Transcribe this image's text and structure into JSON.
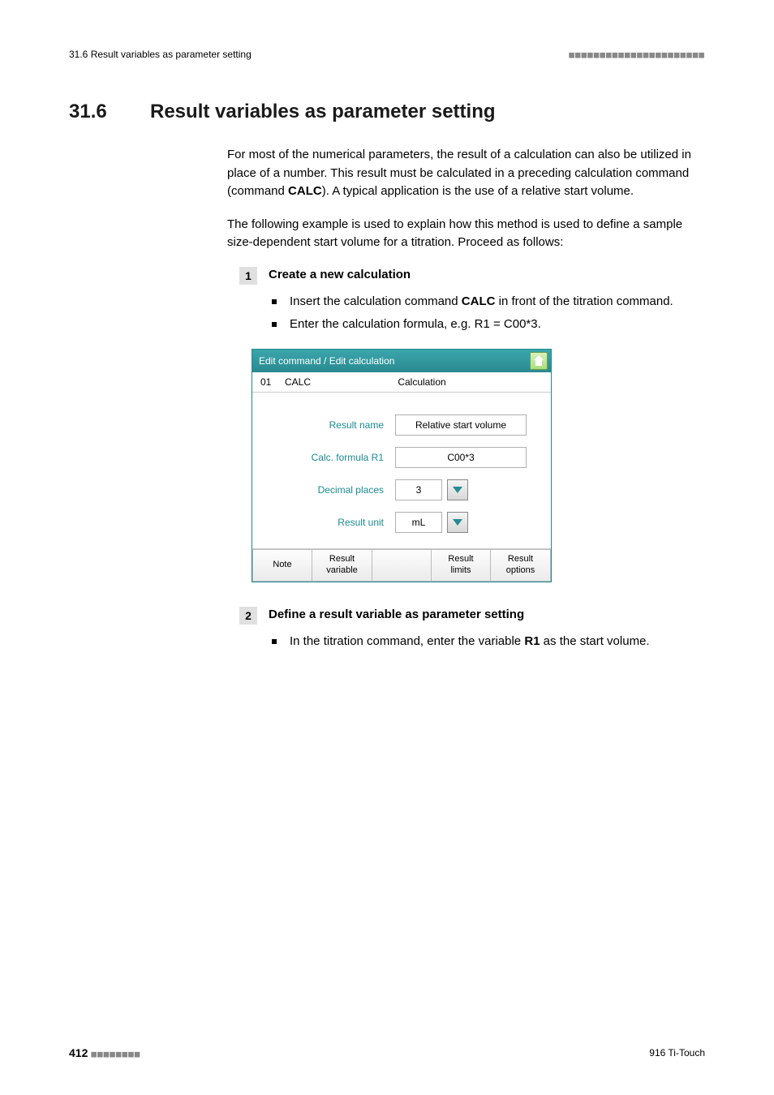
{
  "header": {
    "left": "31.6 Result variables as parameter setting",
    "dashes": "■■■■■■■■■■■■■■■■■■■■■■"
  },
  "section": {
    "number": "31.6",
    "title": "Result variables as parameter setting"
  },
  "intro": {
    "p1_a": "For most of the numerical parameters, the result of a calculation can also be utilized in place of a number. This result must be calculated in a preceding calculation command (command ",
    "p1_b": "CALC",
    "p1_c": "). A typical application is the use of a relative start volume.",
    "p2": "The following example is used to explain how this method is used to define a sample size-dependent start volume for a titration. Proceed as follows:"
  },
  "step1": {
    "num": "1",
    "title": "Create a new calculation",
    "b1_a": "Insert the calculation command ",
    "b1_b": "CALC",
    "b1_c": " in front of the titration command.",
    "b2": "Enter the calculation formula, e.g. R1 = C00*3."
  },
  "panel": {
    "titlebar": "Edit command / Edit calculation",
    "cmdnum": "01",
    "cmdname": "CALC",
    "cmdmode": "Calculation",
    "labels": {
      "result_name": "Result name",
      "calc_formula": "Calc. formula R1",
      "decimal_places": "Decimal places",
      "result_unit": "Result unit"
    },
    "values": {
      "result_name": "Relative start volume",
      "calc_formula": "C00*3",
      "decimal_places": "3",
      "result_unit": "mL"
    },
    "buttons": {
      "note": "Note",
      "result_variable": "Result\nvariable",
      "result_limits": "Result\nlimits",
      "result_options": "Result\noptions"
    },
    "colors": {
      "teal": "#2a8a90",
      "label": "#1a8a90"
    }
  },
  "step2": {
    "num": "2",
    "title": "Define a result variable as parameter setting",
    "b1_a": "In the titration command, enter the variable ",
    "b1_b": "R1",
    "b1_c": " as the start volume."
  },
  "footer": {
    "page": "412",
    "dashes": "■■■■■■■■",
    "right": "916 Ti-Touch"
  }
}
